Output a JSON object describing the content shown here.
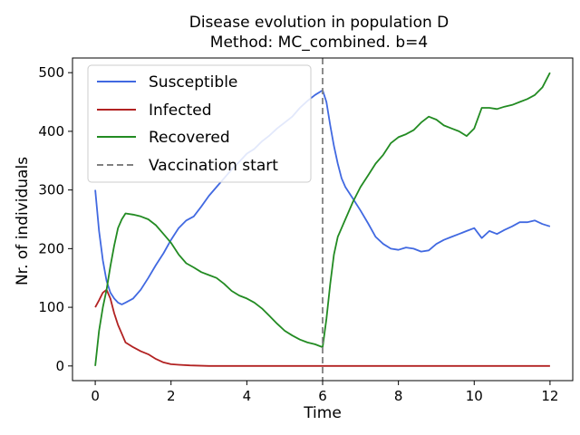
{
  "chart_data": {
    "type": "line",
    "title": "Disease evolution in population D",
    "subtitle": "Method: MC_combined. b=4",
    "xlabel": "Time",
    "ylabel": "Nr. of individuals",
    "xlim": [
      -0.6,
      12.6
    ],
    "ylim": [
      -25,
      525
    ],
    "xticks": [
      0,
      2,
      4,
      6,
      8,
      10,
      12
    ],
    "yticks": [
      0,
      100,
      200,
      300,
      400,
      500
    ],
    "grid": false,
    "legend_position": "top-left",
    "series": [
      {
        "name": "Susceptible",
        "color": "#4169e1",
        "x": [
          0,
          0.1,
          0.2,
          0.3,
          0.4,
          0.5,
          0.6,
          0.7,
          0.8,
          1.0,
          1.2,
          1.4,
          1.6,
          1.8,
          2.0,
          2.2,
          2.4,
          2.6,
          2.8,
          3.0,
          3.2,
          3.4,
          3.6,
          3.8,
          4.0,
          4.2,
          4.4,
          4.6,
          4.8,
          5.0,
          5.2,
          5.4,
          5.6,
          5.8,
          6.0,
          6.1,
          6.2,
          6.3,
          6.4,
          6.5,
          6.6,
          6.8,
          7.0,
          7.2,
          7.4,
          7.6,
          7.8,
          8.0,
          8.2,
          8.4,
          8.6,
          8.8,
          9.0,
          9.2,
          9.4,
          9.6,
          9.8,
          10.0,
          10.2,
          10.4,
          10.6,
          10.8,
          11.0,
          11.2,
          11.4,
          11.6,
          11.8,
          12.0
        ],
        "values": [
          300,
          230,
          180,
          145,
          125,
          115,
          108,
          105,
          108,
          115,
          130,
          150,
          172,
          192,
          215,
          235,
          248,
          255,
          272,
          290,
          305,
          320,
          335,
          348,
          362,
          370,
          383,
          393,
          405,
          415,
          425,
          440,
          452,
          462,
          470,
          450,
          410,
          375,
          345,
          320,
          305,
          285,
          265,
          243,
          220,
          208,
          200,
          198,
          202,
          200,
          195,
          197,
          208,
          215,
          220,
          225,
          230,
          235,
          218,
          230,
          225,
          232,
          238,
          245,
          245,
          248,
          242,
          238
        ]
      },
      {
        "name": "Infected",
        "color": "#b22222",
        "x": [
          0,
          0.1,
          0.2,
          0.3,
          0.4,
          0.5,
          0.6,
          0.7,
          0.8,
          1.0,
          1.2,
          1.4,
          1.6,
          1.8,
          2.0,
          2.2,
          2.5,
          3.0,
          4.0,
          6.0,
          8.0,
          10.0,
          12.0
        ],
        "values": [
          100,
          112,
          125,
          130,
          115,
          90,
          70,
          55,
          40,
          32,
          25,
          20,
          12,
          6,
          3,
          2,
          1,
          0,
          0,
          0,
          0,
          0,
          0
        ]
      },
      {
        "name": "Recovered",
        "color": "#228b22",
        "x": [
          0,
          0.1,
          0.2,
          0.3,
          0.4,
          0.5,
          0.6,
          0.7,
          0.8,
          1.0,
          1.2,
          1.4,
          1.6,
          1.8,
          2.0,
          2.2,
          2.4,
          2.6,
          2.8,
          3.0,
          3.2,
          3.4,
          3.6,
          3.8,
          4.0,
          4.2,
          4.4,
          4.6,
          4.8,
          5.0,
          5.2,
          5.4,
          5.6,
          5.8,
          6.0,
          6.1,
          6.2,
          6.3,
          6.4,
          6.5,
          6.6,
          6.8,
          7.0,
          7.2,
          7.4,
          7.6,
          7.8,
          8.0,
          8.2,
          8.4,
          8.6,
          8.8,
          9.0,
          9.2,
          9.4,
          9.6,
          9.8,
          10.0,
          10.2,
          10.4,
          10.6,
          10.8,
          11.0,
          11.2,
          11.4,
          11.6,
          11.8,
          12.0
        ],
        "values": [
          0,
          60,
          100,
          130,
          170,
          205,
          235,
          250,
          260,
          258,
          255,
          250,
          240,
          225,
          210,
          190,
          175,
          168,
          160,
          155,
          150,
          140,
          128,
          120,
          115,
          108,
          98,
          85,
          72,
          60,
          52,
          45,
          40,
          37,
          32,
          80,
          140,
          190,
          220,
          235,
          250,
          280,
          305,
          325,
          345,
          360,
          380,
          390,
          395,
          402,
          415,
          425,
          420,
          410,
          405,
          400,
          392,
          405,
          440,
          440,
          438,
          442,
          445,
          450,
          455,
          462,
          475,
          500
        ]
      }
    ],
    "vline": {
      "name": "Vaccination start",
      "x": 6,
      "color": "#808080"
    }
  }
}
